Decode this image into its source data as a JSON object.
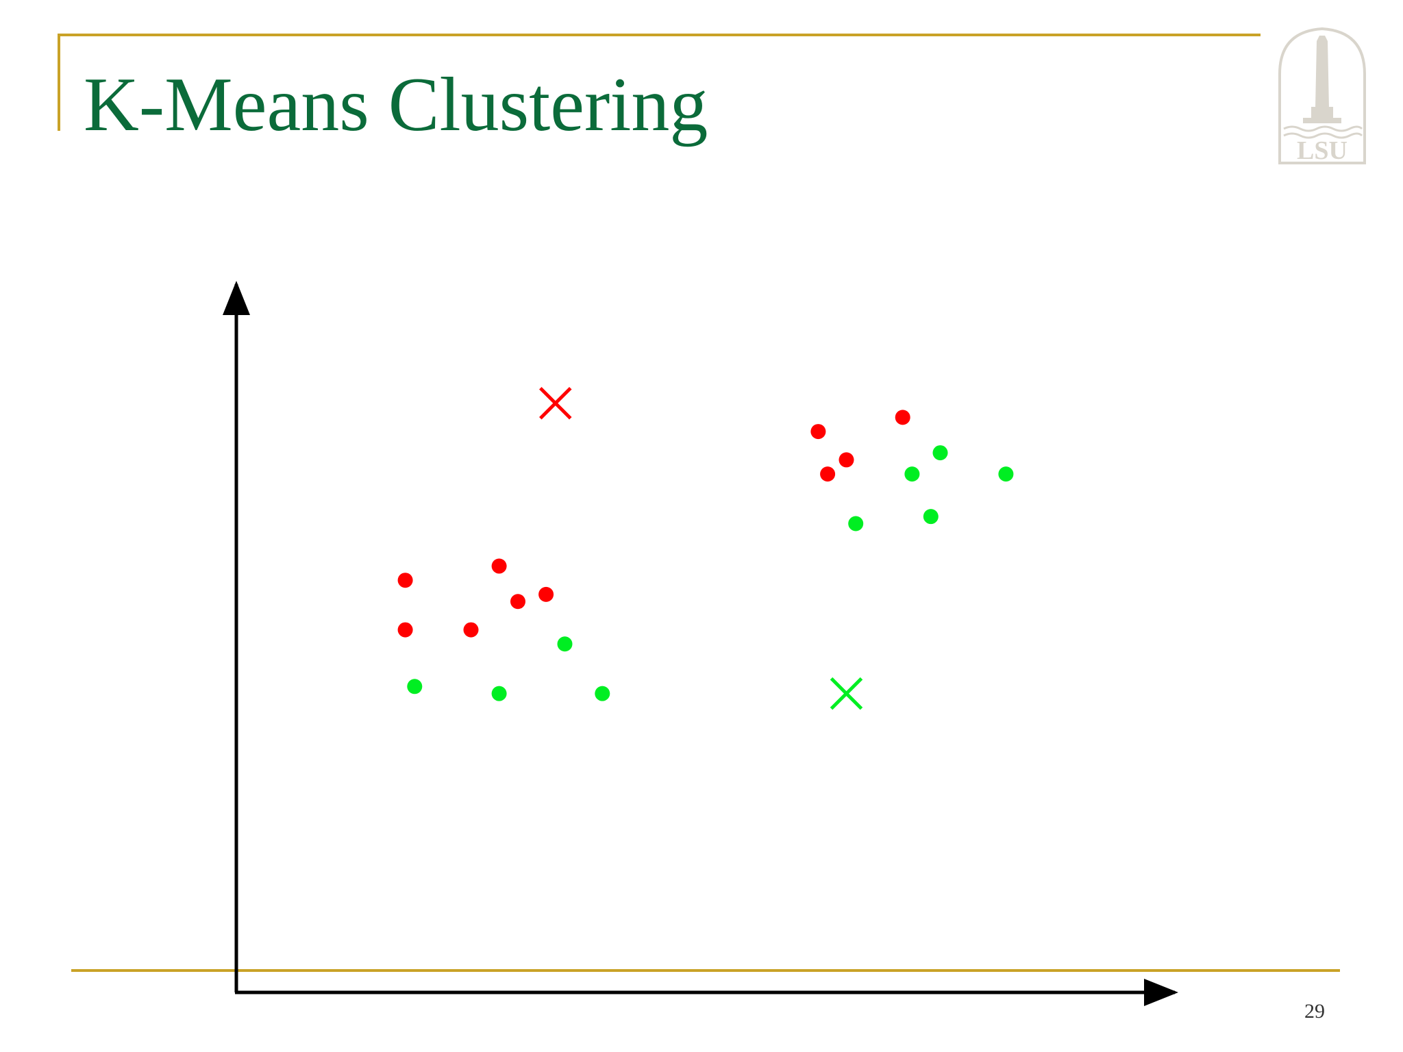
{
  "slide": {
    "title": "K-Means Clustering",
    "page_number": "29",
    "logo_text": "LSU"
  },
  "colors": {
    "rule": "#C9A227",
    "title": "#0B6B3A",
    "cluster_red": "#FF0000",
    "cluster_green": "#00EE22",
    "axis": "#000000",
    "logo": "#D9D5CC"
  },
  "chart_data": {
    "type": "scatter",
    "title": "",
    "xlabel": "",
    "ylabel": "",
    "xlim": [
      0,
      100
    ],
    "ylim": [
      0,
      100
    ],
    "grid": false,
    "axis_ticks": false,
    "series": [
      {
        "color": "#FF0000",
        "marker": "dot",
        "points": [
          [
            18,
            58.2
          ],
          [
            28,
            60.2
          ],
          [
            18,
            51.2
          ],
          [
            25,
            51.2
          ],
          [
            30,
            55.2
          ],
          [
            33,
            56.2
          ],
          [
            62,
            79.2
          ],
          [
            71,
            81.2
          ],
          [
            65,
            75.2
          ],
          [
            63,
            73.2
          ]
        ]
      },
      {
        "color": "#00EE22",
        "marker": "dot",
        "points": [
          [
            35,
            49.2
          ],
          [
            19,
            43.2
          ],
          [
            28,
            42.2
          ],
          [
            39,
            42.2
          ],
          [
            75,
            76.2
          ],
          [
            72,
            73.2
          ],
          [
            82,
            73.2
          ],
          [
            66,
            66.2
          ],
          [
            74,
            67.2
          ]
        ]
      }
    ],
    "centroids": [
      {
        "color": "#FF0000",
        "marker": "x",
        "point": [
          34,
          83.2
        ]
      },
      {
        "color": "#00EE22",
        "marker": "x",
        "point": [
          65,
          42.2
        ]
      }
    ]
  }
}
